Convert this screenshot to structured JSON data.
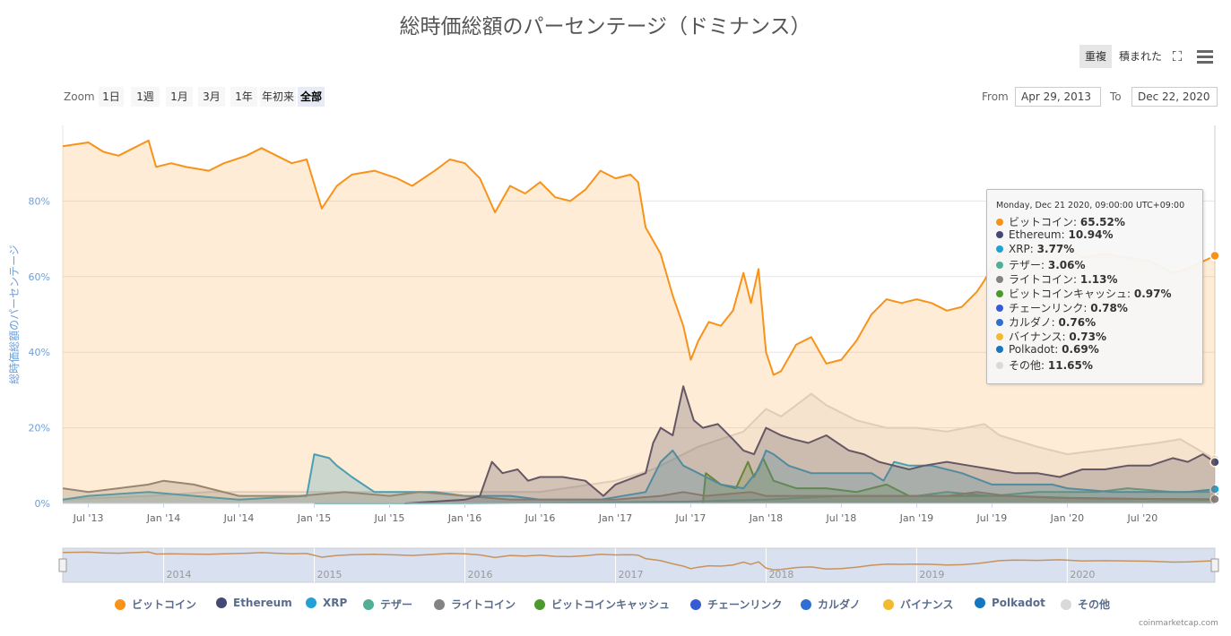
{
  "title": "総時価総額のパーセンテージ（ドミナンス）",
  "toolbar": {
    "overlap_label": "重複",
    "stacked_label": "積まれた",
    "fullscreen_icon": "⛶",
    "menu_icon": "hamburger-icon"
  },
  "range_selector": {
    "zoom_label": "Zoom",
    "buttons": [
      "1日",
      "1週",
      "1月",
      "3月",
      "1年",
      "年初来",
      "全部"
    ],
    "selected": "全部",
    "from_label": "From",
    "from_value": "Apr 29, 2013",
    "to_label": "To",
    "to_value": "Dec 22, 2020"
  },
  "tooltip": {
    "header": "Monday, Dec 21 2020, 09:00:00 UTC+09:00",
    "rows": [
      {
        "name": "ビットコイン",
        "value": "65.52%",
        "color": "#f7931a"
      },
      {
        "name": "Ethereum",
        "value": "10.94%",
        "color": "#454a75"
      },
      {
        "name": "XRP",
        "value": "3.77%",
        "color": "#23a1d4"
      },
      {
        "name": "テザー",
        "value": "3.06%",
        "color": "#50af95"
      },
      {
        "name": "ライトコイン",
        "value": "1.13%",
        "color": "#838383"
      },
      {
        "name": "ビットコインキャッシュ",
        "value": "0.97%",
        "color": "#4b9a2c"
      },
      {
        "name": "チェーンリンク",
        "value": "0.78%",
        "color": "#375bd2"
      },
      {
        "name": "カルダノ",
        "value": "0.76%",
        "color": "#2f6fd0"
      },
      {
        "name": "バイナンス",
        "value": "0.73%",
        "color": "#f3ba2f"
      },
      {
        "name": "Polkadot",
        "value": "0.69%",
        "color": "#1577c2"
      },
      {
        "name": "その他",
        "value": "11.65%",
        "color": "#d9d9d9"
      }
    ]
  },
  "chart_data": {
    "type": "area",
    "title": "総時価総額のパーセンテージ（ドミナンス）",
    "ylabel": "総時価総額のパーセンテージ",
    "ylim": [
      0,
      100
    ],
    "y_ticks": [
      "0%",
      "20%",
      "40%",
      "60%",
      "80%"
    ],
    "y_tick_values": [
      0,
      20,
      40,
      60,
      80
    ],
    "x_range": [
      2013.33,
      2020.98
    ],
    "x_ticks": [
      "Jul '13",
      "Jan '14",
      "Jul '14",
      "Jan '15",
      "Jul '15",
      "Jan '16",
      "Jul '16",
      "Jan '17",
      "Jul '17",
      "Jan '18",
      "Jul '18",
      "Jan '19",
      "Jul '19",
      "Jan '20",
      "Jul '20"
    ],
    "x_tick_values": [
      2013.5,
      2014.0,
      2014.5,
      2015.0,
      2015.5,
      2016.0,
      2016.5,
      2017.0,
      2017.5,
      2018.0,
      2018.5,
      2019.0,
      2019.5,
      2020.0,
      2020.5
    ],
    "navigator_years": [
      "2014",
      "2015",
      "2016",
      "2017",
      "2018",
      "2019",
      "2020"
    ],
    "navigator_year_values": [
      2014,
      2015,
      2016,
      2017,
      2018,
      2019,
      2020
    ],
    "series": [
      {
        "name": "その他",
        "color": "#d9d9d9",
        "points": [
          [
            2013.33,
            1
          ],
          [
            2013.9,
            2
          ],
          [
            2014.3,
            3
          ],
          [
            2015.0,
            3
          ],
          [
            2015.5,
            3
          ],
          [
            2016.0,
            3
          ],
          [
            2016.5,
            3
          ],
          [
            2017.0,
            6
          ],
          [
            2017.25,
            9
          ],
          [
            2017.4,
            12
          ],
          [
            2017.55,
            15
          ],
          [
            2017.7,
            17
          ],
          [
            2017.85,
            19
          ],
          [
            2018.0,
            25
          ],
          [
            2018.1,
            23
          ],
          [
            2018.2,
            26
          ],
          [
            2018.3,
            29
          ],
          [
            2018.4,
            26
          ],
          [
            2018.6,
            22
          ],
          [
            2018.8,
            20
          ],
          [
            2019.0,
            20
          ],
          [
            2019.2,
            19
          ],
          [
            2019.45,
            21
          ],
          [
            2019.55,
            18
          ],
          [
            2019.8,
            15
          ],
          [
            2020.0,
            13
          ],
          [
            2020.2,
            14
          ],
          [
            2020.4,
            15
          ],
          [
            2020.6,
            16
          ],
          [
            2020.75,
            17
          ],
          [
            2020.98,
            11.65
          ]
        ]
      },
      {
        "name": "ビットコインキャッシュ",
        "color": "#4b9a2c",
        "points": [
          [
            2017.58,
            0
          ],
          [
            2017.6,
            8
          ],
          [
            2017.7,
            5
          ],
          [
            2017.8,
            4
          ],
          [
            2017.88,
            11
          ],
          [
            2017.92,
            7
          ],
          [
            2017.98,
            12
          ],
          [
            2018.05,
            6
          ],
          [
            2018.2,
            4
          ],
          [
            2018.4,
            4
          ],
          [
            2018.6,
            3
          ],
          [
            2018.8,
            5
          ],
          [
            2018.95,
            2
          ],
          [
            2019.3,
            2
          ],
          [
            2019.6,
            2
          ],
          [
            2020.0,
            1.5
          ],
          [
            2020.5,
            1.2
          ],
          [
            2020.98,
            0.97
          ]
        ]
      },
      {
        "name": "テザー",
        "color": "#50af95",
        "points": [
          [
            2015.0,
            0
          ],
          [
            2016.0,
            0
          ],
          [
            2017.0,
            0.3
          ],
          [
            2017.5,
            0.5
          ],
          [
            2018.0,
            1
          ],
          [
            2018.5,
            2
          ],
          [
            2019.0,
            2
          ],
          [
            2019.2,
            3
          ],
          [
            2019.5,
            2
          ],
          [
            2019.8,
            3
          ],
          [
            2020.0,
            3
          ],
          [
            2020.2,
            3
          ],
          [
            2020.4,
            4
          ],
          [
            2020.7,
            3
          ],
          [
            2020.98,
            3.06
          ]
        ]
      },
      {
        "name": "XRP",
        "color": "#23a1d4",
        "points": [
          [
            2013.33,
            1
          ],
          [
            2013.5,
            2
          ],
          [
            2013.9,
            3
          ],
          [
            2014.2,
            2
          ],
          [
            2014.5,
            1
          ],
          [
            2014.95,
            2
          ],
          [
            2015.0,
            13
          ],
          [
            2015.1,
            12
          ],
          [
            2015.15,
            10
          ],
          [
            2015.25,
            7
          ],
          [
            2015.4,
            3
          ],
          [
            2015.8,
            3
          ],
          [
            2016.0,
            2
          ],
          [
            2016.3,
            2
          ],
          [
            2016.5,
            1
          ],
          [
            2016.9,
            1
          ],
          [
            2017.2,
            3
          ],
          [
            2017.3,
            11
          ],
          [
            2017.38,
            14
          ],
          [
            2017.45,
            10
          ],
          [
            2017.55,
            8
          ],
          [
            2017.7,
            5
          ],
          [
            2017.85,
            4
          ],
          [
            2017.95,
            9
          ],
          [
            2018.0,
            14
          ],
          [
            2018.05,
            13
          ],
          [
            2018.15,
            10
          ],
          [
            2018.3,
            8
          ],
          [
            2018.5,
            8
          ],
          [
            2018.7,
            8
          ],
          [
            2018.78,
            6
          ],
          [
            2018.85,
            11
          ],
          [
            2018.95,
            10
          ],
          [
            2019.1,
            10
          ],
          [
            2019.3,
            8
          ],
          [
            2019.5,
            5
          ],
          [
            2019.7,
            5
          ],
          [
            2019.9,
            5
          ],
          [
            2020.0,
            4
          ],
          [
            2020.3,
            3
          ],
          [
            2020.6,
            3
          ],
          [
            2020.8,
            3
          ],
          [
            2020.98,
            3.77
          ]
        ]
      },
      {
        "name": "ライトコイン",
        "color": "#838383",
        "points": [
          [
            2013.33,
            4
          ],
          [
            2013.5,
            3
          ],
          [
            2013.9,
            5
          ],
          [
            2014.0,
            6
          ],
          [
            2014.2,
            5
          ],
          [
            2014.5,
            2
          ],
          [
            2014.9,
            2
          ],
          [
            2015.2,
            3
          ],
          [
            2015.5,
            2
          ],
          [
            2015.7,
            3
          ],
          [
            2016.0,
            2
          ],
          [
            2016.3,
            1
          ],
          [
            2016.7,
            1
          ],
          [
            2017.0,
            1
          ],
          [
            2017.3,
            2
          ],
          [
            2017.45,
            3
          ],
          [
            2017.6,
            2
          ],
          [
            2017.9,
            3
          ],
          [
            2018.0,
            2
          ],
          [
            2018.3,
            2
          ],
          [
            2018.6,
            2
          ],
          [
            2018.9,
            2
          ],
          [
            2019.2,
            2
          ],
          [
            2019.4,
            3
          ],
          [
            2019.6,
            2
          ],
          [
            2019.9,
            1.5
          ],
          [
            2020.3,
            1.2
          ],
          [
            2020.98,
            1.13
          ]
        ]
      },
      {
        "name": "Ethereum",
        "color": "#454a75",
        "points": [
          [
            2015.6,
            0
          ],
          [
            2016.0,
            1
          ],
          [
            2016.1,
            2
          ],
          [
            2016.18,
            11
          ],
          [
            2016.25,
            8
          ],
          [
            2016.35,
            9
          ],
          [
            2016.42,
            6
          ],
          [
            2016.5,
            7
          ],
          [
            2016.65,
            7
          ],
          [
            2016.8,
            6
          ],
          [
            2016.92,
            2
          ],
          [
            2017.0,
            5
          ],
          [
            2017.2,
            8
          ],
          [
            2017.25,
            16
          ],
          [
            2017.3,
            20
          ],
          [
            2017.38,
            18
          ],
          [
            2017.45,
            31
          ],
          [
            2017.52,
            22
          ],
          [
            2017.58,
            20
          ],
          [
            2017.68,
            21
          ],
          [
            2017.78,
            17
          ],
          [
            2017.85,
            14
          ],
          [
            2017.92,
            13
          ],
          [
            2018.0,
            20
          ],
          [
            2018.1,
            18
          ],
          [
            2018.18,
            17
          ],
          [
            2018.28,
            16
          ],
          [
            2018.4,
            18
          ],
          [
            2018.55,
            14
          ],
          [
            2018.65,
            13
          ],
          [
            2018.75,
            11
          ],
          [
            2018.85,
            10
          ],
          [
            2018.95,
            9
          ],
          [
            2019.05,
            10
          ],
          [
            2019.2,
            11
          ],
          [
            2019.35,
            10
          ],
          [
            2019.5,
            9
          ],
          [
            2019.65,
            8
          ],
          [
            2019.8,
            8
          ],
          [
            2019.95,
            7
          ],
          [
            2020.1,
            9
          ],
          [
            2020.25,
            9
          ],
          [
            2020.4,
            10
          ],
          [
            2020.55,
            10
          ],
          [
            2020.7,
            12
          ],
          [
            2020.8,
            11
          ],
          [
            2020.9,
            13
          ],
          [
            2020.98,
            10.94
          ]
        ]
      },
      {
        "name": "ビットコイン",
        "color": "#f7931a",
        "points": [
          [
            2013.33,
            94.5
          ],
          [
            2013.5,
            95.5
          ],
          [
            2013.6,
            93
          ],
          [
            2013.7,
            92
          ],
          [
            2013.8,
            94
          ],
          [
            2013.9,
            96
          ],
          [
            2013.95,
            89
          ],
          [
            2014.05,
            90
          ],
          [
            2014.15,
            89
          ],
          [
            2014.3,
            88
          ],
          [
            2014.4,
            90
          ],
          [
            2014.55,
            92
          ],
          [
            2014.65,
            94
          ],
          [
            2014.75,
            92
          ],
          [
            2014.85,
            90
          ],
          [
            2014.95,
            91
          ],
          [
            2015.05,
            78
          ],
          [
            2015.15,
            84
          ],
          [
            2015.25,
            87
          ],
          [
            2015.4,
            88
          ],
          [
            2015.55,
            86
          ],
          [
            2015.65,
            84
          ],
          [
            2015.8,
            88
          ],
          [
            2015.9,
            91
          ],
          [
            2016.0,
            90
          ],
          [
            2016.1,
            86
          ],
          [
            2016.2,
            77
          ],
          [
            2016.3,
            84
          ],
          [
            2016.4,
            82
          ],
          [
            2016.5,
            85
          ],
          [
            2016.6,
            81
          ],
          [
            2016.7,
            80
          ],
          [
            2016.8,
            83
          ],
          [
            2016.9,
            88
          ],
          [
            2017.0,
            86
          ],
          [
            2017.1,
            87
          ],
          [
            2017.15,
            85
          ],
          [
            2017.2,
            73
          ],
          [
            2017.3,
            66
          ],
          [
            2017.38,
            55
          ],
          [
            2017.45,
            47
          ],
          [
            2017.5,
            38
          ],
          [
            2017.55,
            43
          ],
          [
            2017.62,
            48
          ],
          [
            2017.7,
            47
          ],
          [
            2017.78,
            51
          ],
          [
            2017.85,
            61
          ],
          [
            2017.9,
            53
          ],
          [
            2017.95,
            62
          ],
          [
            2018.0,
            40
          ],
          [
            2018.05,
            34
          ],
          [
            2018.1,
            35
          ],
          [
            2018.2,
            42
          ],
          [
            2018.3,
            44
          ],
          [
            2018.4,
            37
          ],
          [
            2018.5,
            38
          ],
          [
            2018.6,
            43
          ],
          [
            2018.7,
            50
          ],
          [
            2018.8,
            54
          ],
          [
            2018.9,
            53
          ],
          [
            2019.0,
            54
          ],
          [
            2019.1,
            53
          ],
          [
            2019.2,
            51
          ],
          [
            2019.3,
            52
          ],
          [
            2019.4,
            56
          ],
          [
            2019.45,
            59
          ],
          [
            2019.55,
            66
          ],
          [
            2019.65,
            68
          ],
          [
            2019.8,
            67
          ],
          [
            2019.95,
            69
          ],
          [
            2020.1,
            65
          ],
          [
            2020.25,
            66
          ],
          [
            2020.4,
            65
          ],
          [
            2020.55,
            64
          ],
          [
            2020.7,
            61
          ],
          [
            2020.8,
            62
          ],
          [
            2020.9,
            64
          ],
          [
            2020.98,
            65.52
          ]
        ]
      }
    ]
  },
  "legend": [
    "ビットコイン",
    "Ethereum",
    "XRP",
    "テザー",
    "ライトコイン",
    "ビットコインキャッシュ",
    "チェーンリンク",
    "カルダノ",
    "バイナンス",
    "Polkadot",
    "その他"
  ],
  "credits": "coinmarketcap.com"
}
